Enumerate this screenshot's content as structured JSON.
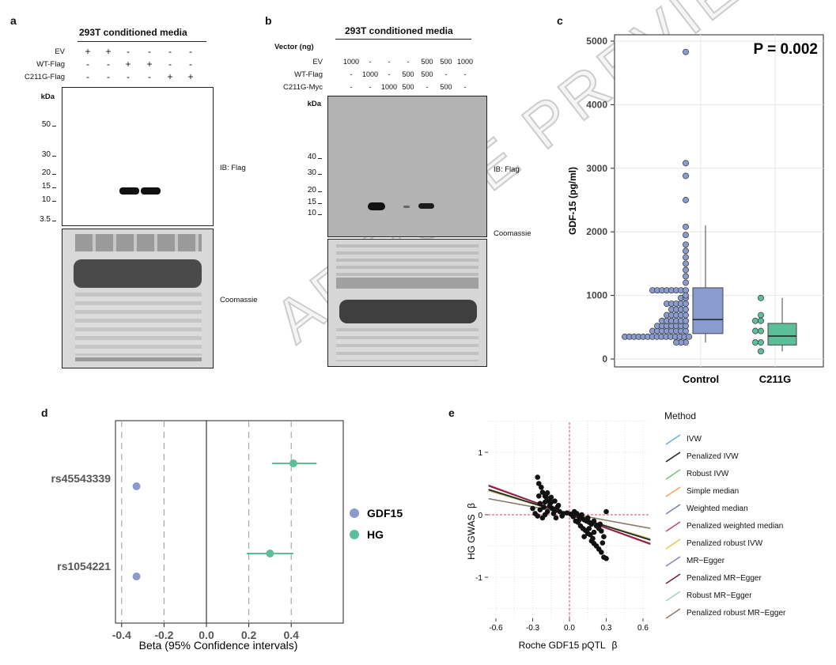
{
  "panel_a": {
    "label": "a",
    "title": "293T conditioned media",
    "rows": [
      {
        "name": "EV",
        "marks": [
          "+",
          "+",
          "-",
          "-",
          "-",
          "-"
        ]
      },
      {
        "name": "WT-Flag",
        "marks": [
          "-",
          "-",
          "+",
          "+",
          "-",
          "-"
        ]
      },
      {
        "name": "C211G-Flag",
        "marks": [
          "-",
          "-",
          "-",
          "-",
          "+",
          "+"
        ]
      }
    ],
    "kda_header": "kDa",
    "markers": [
      "50",
      "30",
      "20",
      "15",
      "10",
      "3.5"
    ],
    "blot_label": "IB: Flag",
    "stain_label": "Coomassie"
  },
  "panel_b": {
    "label": "b",
    "title": "293T conditioned media",
    "vector_label": "Vector (ng)",
    "rows": [
      {
        "name": "EV",
        "marks": [
          "1000",
          "-",
          "-",
          "-",
          "500",
          "500",
          "1000"
        ]
      },
      {
        "name": "WT-Flag",
        "marks": [
          "-",
          "1000",
          "-",
          "500",
          "500",
          "-",
          "-"
        ]
      },
      {
        "name": "C211G-Myc",
        "marks": [
          "-",
          "-",
          "1000",
          "500",
          "-",
          "500",
          "-"
        ]
      }
    ],
    "kda_header": "kDa",
    "markers": [
      "40",
      "30",
      "20",
      "15",
      "10"
    ],
    "blot_label": "IB: Flag",
    "stain_label": "Coomassie"
  },
  "panel_c": {
    "label": "c",
    "pvalue": "P = 0.002",
    "ylabel": "GDF-15 (pg/ml)",
    "yticks": [
      "0",
      "1000",
      "2000",
      "3000",
      "4000",
      "5000"
    ],
    "groups": [
      "Control",
      "C211G"
    ],
    "colors": {
      "control": "#8a9bd0",
      "c211g": "#5bbf9a"
    }
  },
  "panel_d": {
    "label": "d",
    "snps": [
      "rs45543339",
      "rs1054221"
    ],
    "xticks": [
      "-0.4",
      "-0.2",
      "0.0",
      "0.2",
      "0.4"
    ],
    "xlabel": "Beta (95% Confidence intervals)",
    "legend": [
      {
        "name": "GDF15",
        "color": "#8a9bd0"
      },
      {
        "name": "HG",
        "color": "#5bbf9a"
      }
    ]
  },
  "panel_e": {
    "label": "e",
    "xlabel": "Roche GDF15 pQTL",
    "xlabel_symbol": "β",
    "ylabel": "HG GWAS",
    "ylabel_symbol": "β",
    "xticks": [
      "-0.6",
      "-0.3",
      "0.0",
      "0.3",
      "0.6"
    ],
    "yticks": [
      "1",
      "0",
      "-1"
    ],
    "legend_title": "Method",
    "methods": [
      {
        "name": "IVW",
        "color": "#6baed6"
      },
      {
        "name": "Penalized IVW",
        "color": "#222222"
      },
      {
        "name": "Robust IVW",
        "color": "#74c476"
      },
      {
        "name": "Simple median",
        "color": "#f4a460"
      },
      {
        "name": "Weighted median",
        "color": "#7b7fbf"
      },
      {
        "name": "Penalized weighted median",
        "color": "#c2457a"
      },
      {
        "name": "Penalized robust IVW",
        "color": "#e6c84a"
      },
      {
        "name": "MR−Egger",
        "color": "#8c7fc4"
      },
      {
        "name": "Penalized MR−Egger",
        "color": "#7a1f3d"
      },
      {
        "name": "Robust MR−Egger",
        "color": "#9fd8d0"
      },
      {
        "name": "Penalized robust MR−Egger",
        "color": "#8b7a6a"
      }
    ]
  },
  "watermark": "ARTICLE PREVIEW"
}
